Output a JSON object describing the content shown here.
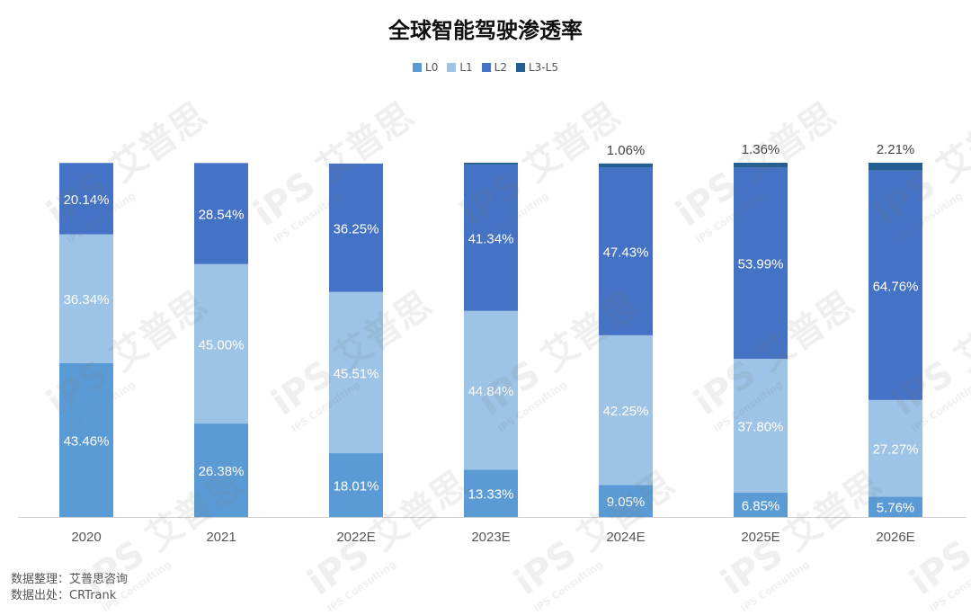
{
  "chart_data": {
    "type": "bar",
    "stacked": true,
    "title": "全球智能驾驶渗透率",
    "categories": [
      "2020",
      "2021",
      "2022E",
      "2023E",
      "2024E",
      "2025E",
      "2026E"
    ],
    "series": [
      {
        "name": "L0",
        "color": "#5b9bd5",
        "values": [
          43.46,
          26.38,
          18.01,
          13.33,
          9.05,
          6.85,
          5.76
        ]
      },
      {
        "name": "L1",
        "color": "#9dc3e6",
        "values": [
          36.34,
          45.0,
          45.51,
          44.84,
          42.25,
          37.8,
          27.27
        ]
      },
      {
        "name": "L2",
        "color": "#4472c4",
        "values": [
          20.14,
          28.54,
          36.25,
          41.34,
          47.43,
          53.99,
          64.76
        ]
      },
      {
        "name": "L3-L5",
        "color": "#255e91",
        "values": [
          0,
          0,
          0,
          0.49,
          1.06,
          1.36,
          2.21
        ]
      }
    ],
    "data_labels": [
      [
        "43.46%",
        "26.38%",
        "18.01%",
        "13.33%",
        "9.05%",
        "6.85%",
        "5.76%"
      ],
      [
        "36.34%",
        "45.00%",
        "45.51%",
        "44.84%",
        "42.25%",
        "37.80%",
        "27.27%"
      ],
      [
        "20.14%",
        "28.54%",
        "36.25%",
        "41.34%",
        "47.43%",
        "53.99%",
        "64.76%"
      ],
      [
        "",
        "",
        "",
        "",
        "1.06%",
        "1.36%",
        "2.21%"
      ]
    ],
    "ylim": [
      0,
      100
    ],
    "grid": false,
    "legend_position": "top"
  },
  "footer": {
    "line1": "数据整理：艾普思咨询",
    "line2": "数据出处：CRTrank"
  },
  "watermark": {
    "brand": "艾普思",
    "logo": "iPS",
    "sub": "IPS Consulting"
  }
}
